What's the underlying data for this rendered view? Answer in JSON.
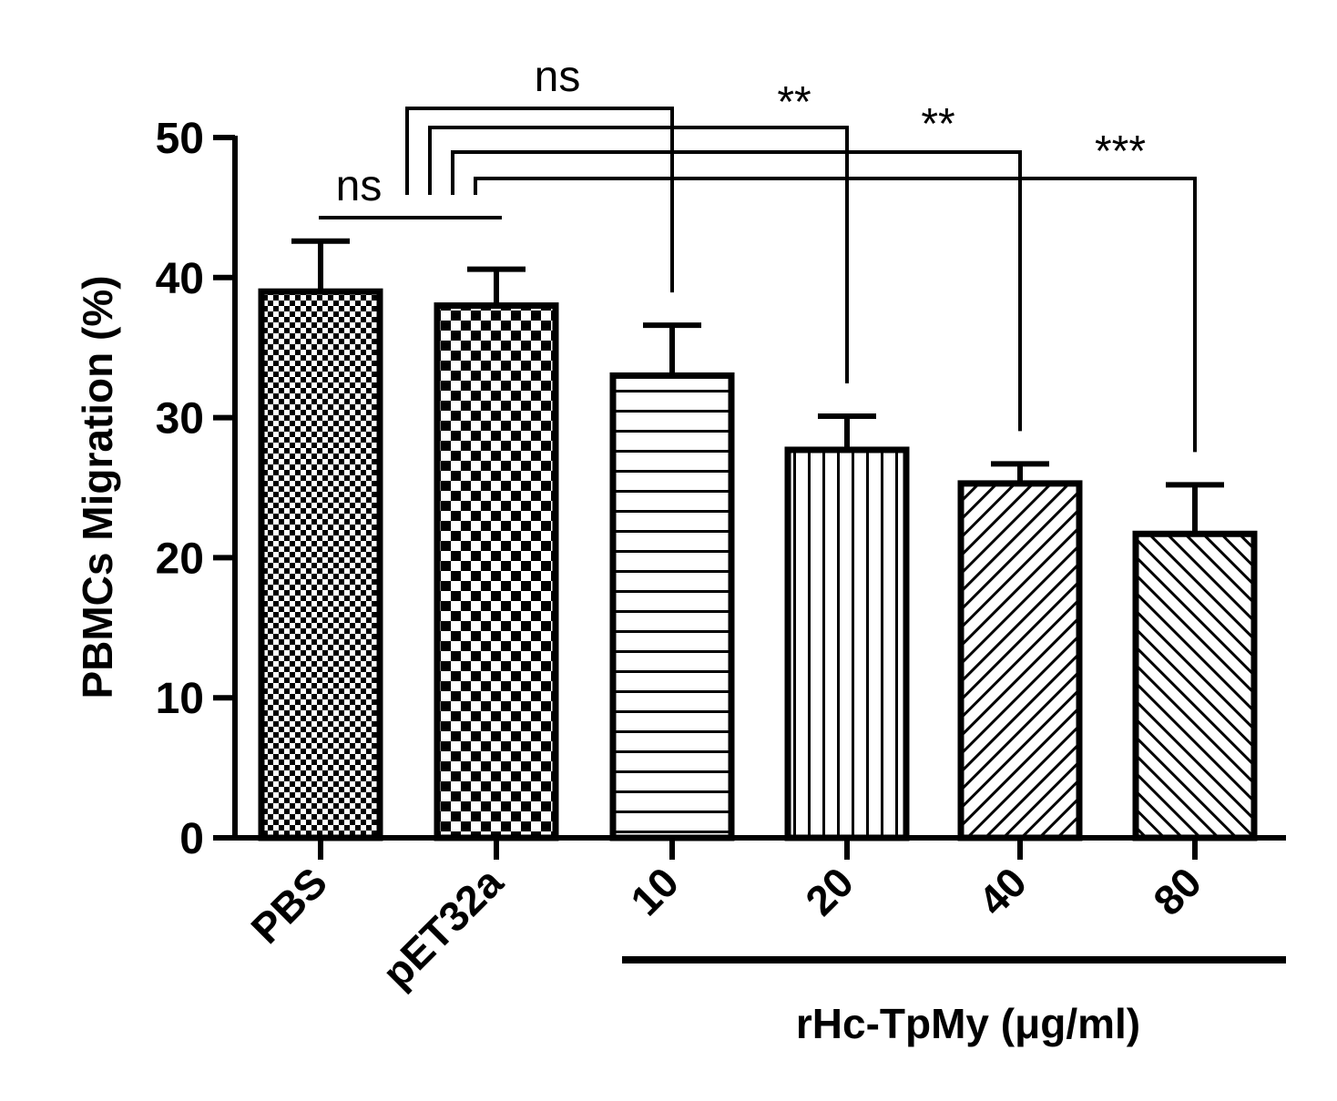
{
  "chart_data": {
    "type": "bar",
    "ylabel": "PBMCs Migration (%)",
    "ylim": [
      0,
      50
    ],
    "yticks": [
      0,
      10,
      20,
      30,
      40,
      50
    ],
    "categories": [
      "PBS",
      "pET32a",
      "10",
      "20",
      "40",
      "80"
    ],
    "values": [
      39,
      38,
      33,
      27.7,
      25.3,
      21.7
    ],
    "errors": [
      3.6,
      2.6,
      3.6,
      2.4,
      1.4,
      3.5
    ],
    "fill_patterns": [
      "fine-check",
      "coarse-check",
      "horizontal-lines",
      "vertical-lines",
      "diagonal-forward",
      "diagonal-backward"
    ],
    "group_label": "rHc-TpMy (μg/ml)",
    "group_categories": [
      "10",
      "20",
      "40",
      "80"
    ],
    "significance": [
      {
        "from": "PBS",
        "to": "pET32a",
        "label": "ns"
      },
      {
        "from": "pET32a",
        "to": "10",
        "label": "ns"
      },
      {
        "from": "pET32a",
        "to": "20",
        "label": "**"
      },
      {
        "from": "pET32a",
        "to": "40",
        "label": "**"
      },
      {
        "from": "pET32a",
        "to": "80",
        "label": "***"
      }
    ],
    "grid": false,
    "legend": "none"
  }
}
